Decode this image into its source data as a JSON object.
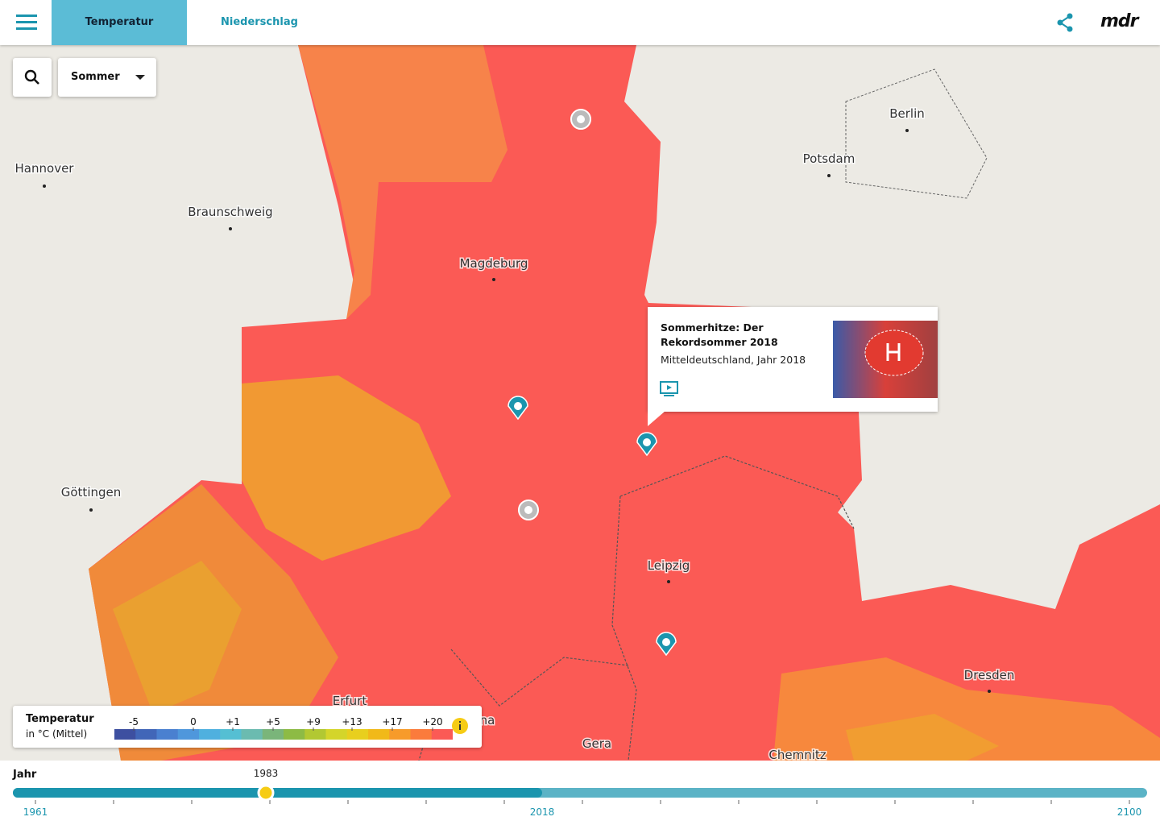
{
  "header": {
    "tabs": [
      "Temperatur",
      "Niederschlag"
    ],
    "brand": "mdr"
  },
  "controls": {
    "season": "Sommer"
  },
  "map": {
    "cities": [
      "Berlin",
      "Potsdam",
      "Hannover",
      "Braunschweig",
      "Magdeburg",
      "Göttingen",
      "Leipzig",
      "Dresden",
      "Erfurt",
      "Gera",
      "Chemnitz",
      "na"
    ]
  },
  "popup": {
    "title": "Sommerhitze: Der Rekordsommer 2018",
    "subtitle": "Mitteldeutschland, Jahr 2018"
  },
  "legend": {
    "title": "Temperatur",
    "unit": "in °C (Mittel)",
    "labels": [
      "-5",
      "0",
      "+1",
      "+5",
      "+9",
      "+13",
      "+17",
      "+20"
    ],
    "colors": [
      "#3d4fa0",
      "#4166b8",
      "#4a80d0",
      "#4f97dc",
      "#4fb0df",
      "#55bfd3",
      "#6bbbb0",
      "#7ab57a",
      "#8dbb45",
      "#b2c832",
      "#d4d52a",
      "#e8cf1e",
      "#f1b919",
      "#f79b2a",
      "#fb7b3c",
      "#fb5a55"
    ]
  },
  "timeline": {
    "label": "Jahr",
    "current": "1983",
    "start": "1961",
    "mid": "2018",
    "end": "2100"
  }
}
